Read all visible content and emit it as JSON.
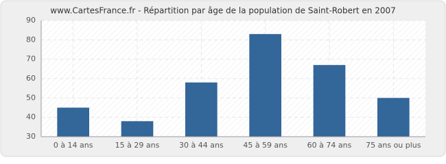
{
  "chart_data": {
    "type": "bar",
    "title": "www.CartesFrance.fr - Répartition par âge de la population de Saint-Robert en 2007",
    "categories": [
      "0 à 14 ans",
      "15 à 29 ans",
      "30 à 44 ans",
      "45 à 59 ans",
      "60 à 74 ans",
      "75 ans ou plus"
    ],
    "values": [
      45,
      38,
      58,
      83,
      67,
      50
    ],
    "color": "#336699",
    "ylim": [
      30,
      90
    ],
    "yticks": [
      30,
      40,
      50,
      60,
      70,
      80,
      90
    ],
    "grid": true
  }
}
